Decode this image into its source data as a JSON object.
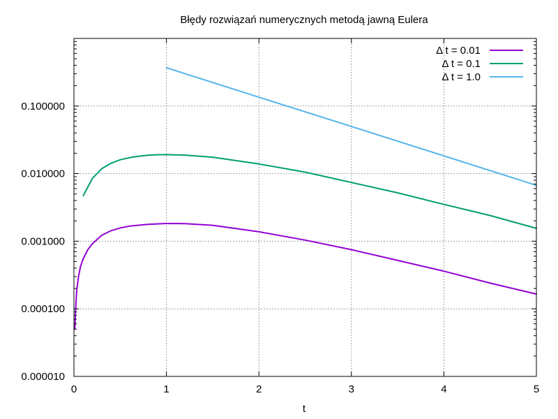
{
  "chart_data": {
    "type": "line",
    "title": "Błędy rozwiązań numerycznych metodą jawną Eulera",
    "xlabel": "t",
    "ylabel": "",
    "xlim": [
      0,
      5
    ],
    "ylim": [
      1e-05,
      1
    ],
    "yscale": "log",
    "grid": true,
    "legend_position": "top-right",
    "x_ticks": [
      0,
      1,
      2,
      3,
      4,
      5
    ],
    "x_tick_labels": [
      "0",
      "1",
      "2",
      "3",
      "4",
      "5"
    ],
    "y_ticks": [
      1e-05,
      0.0001,
      0.001,
      0.01,
      0.1
    ],
    "y_tick_labels": [
      "0.000010",
      "0.000100",
      "0.001000",
      "0.010000",
      "0.100000"
    ],
    "series": [
      {
        "name": "Δ t = 0.01",
        "color": "#9400d3",
        "x": [
          0.01,
          0.02,
          0.03,
          0.05,
          0.07,
          0.1,
          0.15,
          0.2,
          0.3,
          0.4,
          0.5,
          0.6,
          0.8,
          1.0,
          1.2,
          1.5,
          2.0,
          2.5,
          3.0,
          3.5,
          4.0,
          4.5,
          5.0
        ],
        "y": [
          5e-05,
          0.00011,
          0.00019,
          0.0003,
          0.00042,
          0.00055,
          0.00075,
          0.00092,
          0.00122,
          0.00143,
          0.00157,
          0.00167,
          0.00178,
          0.00183,
          0.00182,
          0.00172,
          0.00138,
          0.00104,
          0.00075,
          0.00052,
          0.00036,
          0.00024,
          0.000165
        ]
      },
      {
        "name": "Δ t = 0.1",
        "color": "#009e73",
        "x": [
          0.1,
          0.2,
          0.3,
          0.4,
          0.5,
          0.6,
          0.7,
          0.8,
          0.9,
          1.0,
          1.2,
          1.5,
          2.0,
          2.5,
          3.0,
          3.5,
          4.0,
          4.5,
          5.0
        ],
        "y": [
          0.0047,
          0.0085,
          0.0118,
          0.0142,
          0.016,
          0.0172,
          0.0181,
          0.0187,
          0.019,
          0.0191,
          0.0188,
          0.0175,
          0.0139,
          0.0105,
          0.0074,
          0.0052,
          0.0035,
          0.0024,
          0.00155
        ]
      },
      {
        "name": "Δ t = 1.0",
        "color": "#56b4e9",
        "x": [
          1.0,
          2.0,
          3.0,
          4.0,
          5.0
        ],
        "y": [
          0.368,
          0.135,
          0.0498,
          0.0183,
          0.0067
        ]
      }
    ]
  }
}
